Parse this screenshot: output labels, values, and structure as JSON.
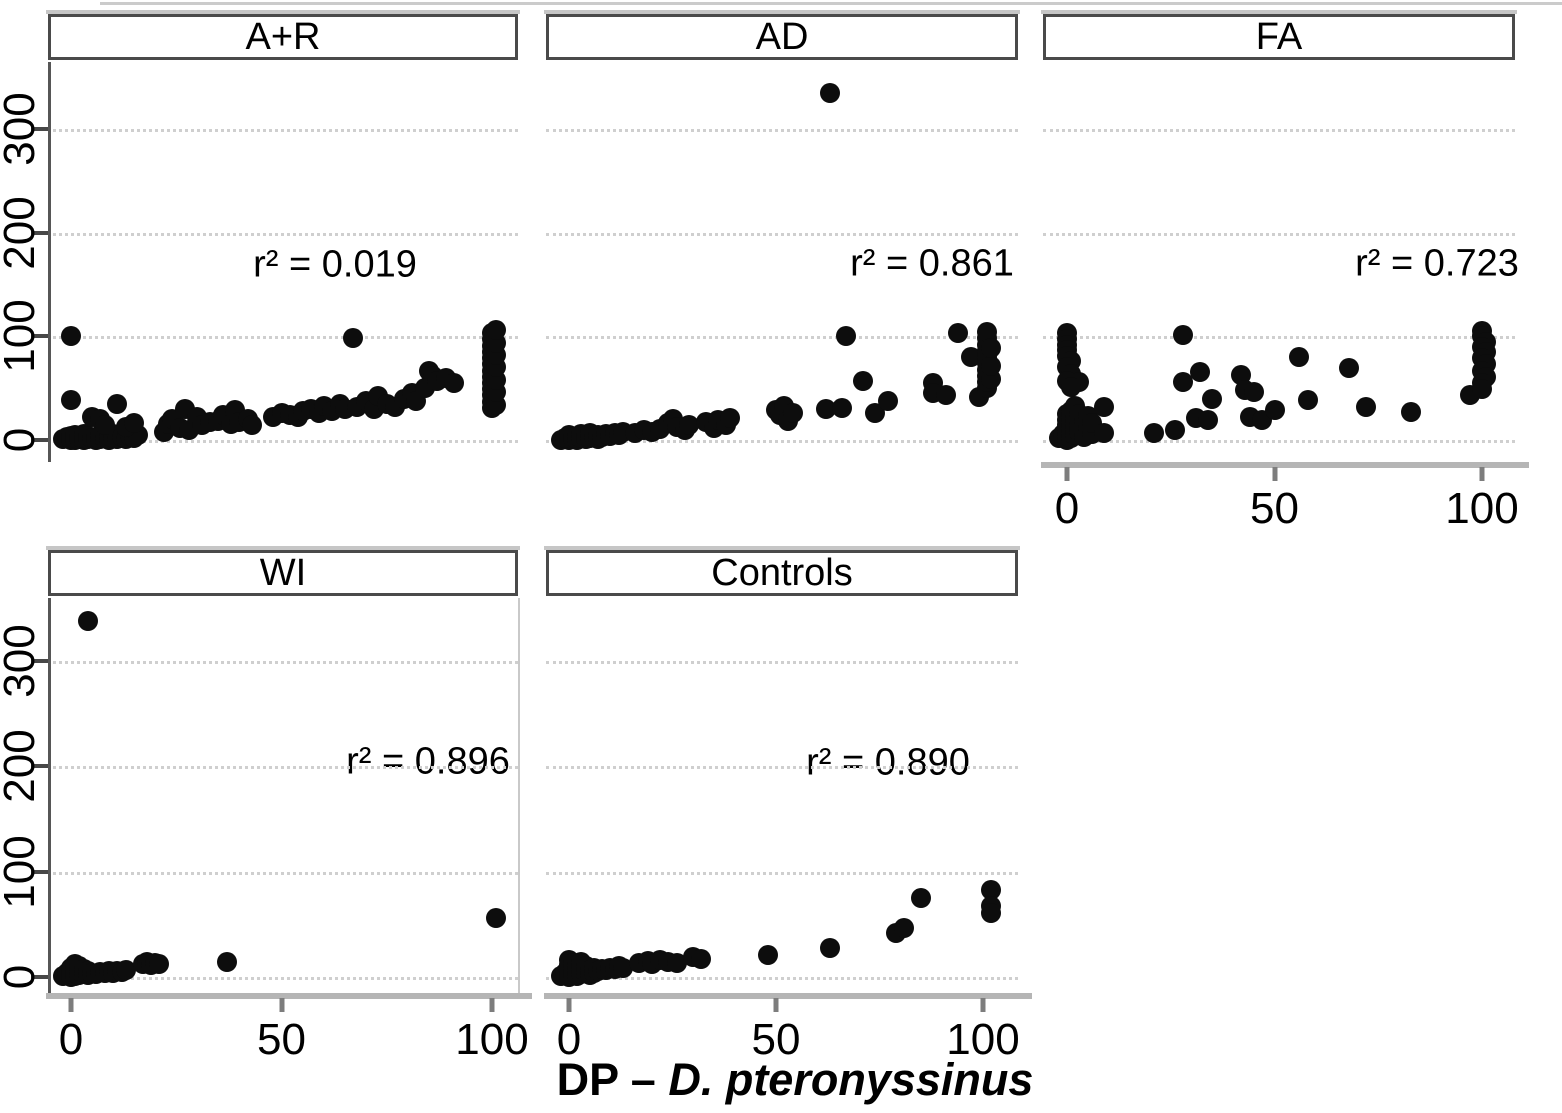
{
  "chart_data": {
    "type": "scatter",
    "layout": "lattice-facets-2-rows",
    "title": "",
    "xlabel_prefix": "DP – ",
    "xlabel_species": "D. pteronyssinus",
    "ylabel": "",
    "x_ticks": [
      0,
      50,
      100
    ],
    "y_ticks": [
      0,
      100,
      200,
      300
    ],
    "x_domain": [
      -5,
      107
    ],
    "y_domain": [
      -20,
      365
    ],
    "grid": "dotted-horizontal-only",
    "point_color": "#0d0d0d",
    "grid_color": "#cfcfcf",
    "axis_line_color": "#b5b5b5",
    "strip_border_color": "#4a4a4a",
    "panels": [
      {
        "id": "a-plus-r",
        "title": "A+R",
        "r2_label": "r² = 0.019",
        "r2_value": 0.019,
        "points": [
          [
            0,
            100
          ],
          [
            0,
            39
          ],
          [
            -2,
            1
          ],
          [
            -1,
            3
          ],
          [
            0,
            0
          ],
          [
            0,
            2
          ],
          [
            0,
            4
          ],
          [
            1,
            0
          ],
          [
            1,
            2
          ],
          [
            1,
            5
          ],
          [
            2,
            1
          ],
          [
            2,
            3
          ],
          [
            3,
            0
          ],
          [
            3,
            2
          ],
          [
            3,
            6
          ],
          [
            4,
            1
          ],
          [
            4,
            4
          ],
          [
            5,
            2
          ],
          [
            6,
            0
          ],
          [
            6,
            3
          ],
          [
            7,
            1
          ],
          [
            7,
            5
          ],
          [
            8,
            2
          ],
          [
            9,
            0
          ],
          [
            9,
            4
          ],
          [
            10,
            2
          ],
          [
            10,
            6
          ],
          [
            11,
            1
          ],
          [
            12,
            3
          ],
          [
            13,
            1
          ],
          [
            14,
            4
          ],
          [
            15,
            2
          ],
          [
            16,
            5
          ],
          [
            5,
            22
          ],
          [
            7,
            20
          ],
          [
            8,
            14
          ],
          [
            11,
            35
          ],
          [
            13,
            13
          ],
          [
            15,
            16
          ],
          [
            22,
            8
          ],
          [
            23,
            15
          ],
          [
            24,
            20
          ],
          [
            26,
            12
          ],
          [
            27,
            30
          ],
          [
            28,
            10
          ],
          [
            30,
            22
          ],
          [
            31,
            14
          ],
          [
            33,
            17
          ],
          [
            35,
            18
          ],
          [
            36,
            24
          ],
          [
            38,
            15
          ],
          [
            39,
            29
          ],
          [
            40,
            17
          ],
          [
            42,
            20
          ],
          [
            43,
            14
          ],
          [
            48,
            22
          ],
          [
            50,
            26
          ],
          [
            52,
            24
          ],
          [
            54,
            22
          ],
          [
            55,
            28
          ],
          [
            57,
            30
          ],
          [
            59,
            26
          ],
          [
            60,
            33
          ],
          [
            62,
            28
          ],
          [
            64,
            35
          ],
          [
            65,
            30
          ],
          [
            67,
            98
          ],
          [
            68,
            32
          ],
          [
            70,
            38
          ],
          [
            72,
            30
          ],
          [
            73,
            42
          ],
          [
            75,
            35
          ],
          [
            77,
            32
          ],
          [
            79,
            40
          ],
          [
            81,
            45
          ],
          [
            82,
            38
          ],
          [
            84,
            50
          ],
          [
            85,
            67
          ],
          [
            86,
            62
          ],
          [
            87,
            57
          ],
          [
            89,
            60
          ],
          [
            91,
            55
          ],
          [
            100,
            31
          ],
          [
            100,
            37
          ],
          [
            100,
            43
          ],
          [
            100,
            49
          ],
          [
            100,
            55
          ],
          [
            100,
            61
          ],
          [
            100,
            67
          ],
          [
            100,
            73
          ],
          [
            100,
            79
          ],
          [
            100,
            85
          ],
          [
            100,
            91
          ],
          [
            100,
            97
          ],
          [
            100,
            103
          ],
          [
            101,
            34
          ],
          [
            101,
            46
          ],
          [
            101,
            58
          ],
          [
            101,
            70
          ],
          [
            101,
            82
          ],
          [
            101,
            94
          ],
          [
            101,
            106
          ]
        ]
      },
      {
        "id": "ad",
        "title": "AD",
        "r2_label": "r² = 0.861",
        "r2_value": 0.861,
        "points": [
          [
            -2,
            0
          ],
          [
            -1,
            2
          ],
          [
            0,
            0
          ],
          [
            0,
            2
          ],
          [
            0,
            5
          ],
          [
            1,
            1
          ],
          [
            1,
            3
          ],
          [
            2,
            0
          ],
          [
            2,
            4
          ],
          [
            3,
            2
          ],
          [
            3,
            6
          ],
          [
            4,
            1
          ],
          [
            4,
            4
          ],
          [
            5,
            2
          ],
          [
            5,
            7
          ],
          [
            6,
            3
          ],
          [
            7,
            1
          ],
          [
            7,
            5
          ],
          [
            8,
            3
          ],
          [
            9,
            6
          ],
          [
            10,
            4
          ],
          [
            11,
            7
          ],
          [
            12,
            5
          ],
          [
            13,
            8
          ],
          [
            16,
            7
          ],
          [
            18,
            10
          ],
          [
            20,
            8
          ],
          [
            22,
            11
          ],
          [
            24,
            16
          ],
          [
            25,
            20
          ],
          [
            26,
            13
          ],
          [
            28,
            10
          ],
          [
            29,
            14
          ],
          [
            33,
            17
          ],
          [
            35,
            12
          ],
          [
            36,
            19
          ],
          [
            38,
            14
          ],
          [
            39,
            21
          ],
          [
            50,
            29
          ],
          [
            51,
            24
          ],
          [
            52,
            33
          ],
          [
            53,
            18
          ],
          [
            54,
            26
          ],
          [
            62,
            30
          ],
          [
            63,
            335
          ],
          [
            66,
            31
          ],
          [
            67,
            100
          ],
          [
            71,
            57
          ],
          [
            74,
            26
          ],
          [
            77,
            38
          ],
          [
            88,
            55
          ],
          [
            88,
            45
          ],
          [
            91,
            43
          ],
          [
            94,
            103
          ],
          [
            97,
            80
          ],
          [
            99,
            41
          ],
          [
            101,
            50
          ],
          [
            101,
            56
          ],
          [
            101,
            62
          ],
          [
            101,
            68
          ],
          [
            101,
            74
          ],
          [
            101,
            80
          ],
          [
            101,
            86
          ],
          [
            101,
            92
          ],
          [
            101,
            98
          ],
          [
            101,
            104
          ],
          [
            102,
            59
          ],
          [
            102,
            71
          ],
          [
            102,
            89
          ]
        ]
      },
      {
        "id": "fa",
        "title": "FA",
        "r2_label": "r² = 0.723",
        "r2_value": 0.723,
        "points": [
          [
            0,
            103
          ],
          [
            0,
            97
          ],
          [
            0,
            92
          ],
          [
            0,
            87
          ],
          [
            0,
            81
          ],
          [
            1,
            76
          ],
          [
            0,
            70
          ],
          [
            1,
            64
          ],
          [
            0,
            57
          ],
          [
            3,
            56
          ],
          [
            1,
            51
          ],
          [
            -2,
            2
          ],
          [
            -1,
            6
          ],
          [
            0,
            0
          ],
          [
            0,
            4
          ],
          [
            0,
            9
          ],
          [
            0,
            14
          ],
          [
            0,
            19
          ],
          [
            0,
            25
          ],
          [
            1,
            2
          ],
          [
            1,
            7
          ],
          [
            1,
            12
          ],
          [
            1,
            17
          ],
          [
            1,
            22
          ],
          [
            1,
            28
          ],
          [
            2,
            5
          ],
          [
            2,
            11
          ],
          [
            2,
            16
          ],
          [
            2,
            21
          ],
          [
            2,
            33
          ],
          [
            3,
            8
          ],
          [
            3,
            14
          ],
          [
            3,
            25
          ],
          [
            4,
            3
          ],
          [
            4,
            18
          ],
          [
            5,
            23
          ],
          [
            5,
            12
          ],
          [
            6,
            6
          ],
          [
            6,
            16
          ],
          [
            9,
            32
          ],
          [
            9,
            7
          ],
          [
            21,
            7
          ],
          [
            26,
            10
          ],
          [
            28,
            101
          ],
          [
            28,
            56
          ],
          [
            32,
            66
          ],
          [
            31,
            21
          ],
          [
            34,
            19
          ],
          [
            35,
            40
          ],
          [
            42,
            63
          ],
          [
            43,
            48
          ],
          [
            45,
            46
          ],
          [
            44,
            22
          ],
          [
            47,
            19
          ],
          [
            50,
            29
          ],
          [
            56,
            80
          ],
          [
            58,
            39
          ],
          [
            68,
            69
          ],
          [
            72,
            32
          ],
          [
            83,
            27
          ],
          [
            97,
            43
          ],
          [
            100,
            105
          ],
          [
            100,
            100
          ],
          [
            101,
            95
          ],
          [
            100,
            90
          ],
          [
            101,
            85
          ],
          [
            100,
            79
          ],
          [
            101,
            73
          ],
          [
            100,
            67
          ],
          [
            101,
            61
          ],
          [
            100,
            55
          ],
          [
            100,
            49
          ]
        ]
      },
      {
        "id": "wi",
        "title": "WI",
        "r2_label": "r² = 0.896",
        "r2_value": 0.896,
        "points": [
          [
            4,
            338
          ],
          [
            -2,
            1
          ],
          [
            -1,
            4
          ],
          [
            0,
            0
          ],
          [
            0,
            3
          ],
          [
            0,
            6
          ],
          [
            0,
            9
          ],
          [
            1,
            1
          ],
          [
            1,
            4
          ],
          [
            1,
            8
          ],
          [
            1,
            12
          ],
          [
            2,
            2
          ],
          [
            2,
            6
          ],
          [
            2,
            10
          ],
          [
            3,
            4
          ],
          [
            3,
            8
          ],
          [
            4,
            2
          ],
          [
            4,
            6
          ],
          [
            5,
            4
          ],
          [
            6,
            3
          ],
          [
            7,
            5
          ],
          [
            8,
            4
          ],
          [
            9,
            6
          ],
          [
            10,
            4
          ],
          [
            11,
            6
          ],
          [
            12,
            5
          ],
          [
            13,
            7
          ],
          [
            17,
            12
          ],
          [
            18,
            14
          ],
          [
            19,
            11
          ],
          [
            20,
            13
          ],
          [
            21,
            12
          ],
          [
            37,
            14
          ],
          [
            101,
            56
          ]
        ]
      },
      {
        "id": "controls",
        "title": "Controls",
        "r2_label": "r² = 0.890",
        "r2_value": 0.89,
        "points": [
          [
            -2,
            1
          ],
          [
            -1,
            4
          ],
          [
            0,
            0
          ],
          [
            0,
            3
          ],
          [
            0,
            7
          ],
          [
            0,
            11
          ],
          [
            0,
            16
          ],
          [
            1,
            2
          ],
          [
            1,
            5
          ],
          [
            1,
            9
          ],
          [
            1,
            13
          ],
          [
            2,
            1
          ],
          [
            2,
            7
          ],
          [
            2,
            11
          ],
          [
            3,
            3
          ],
          [
            3,
            8
          ],
          [
            3,
            14
          ],
          [
            4,
            5
          ],
          [
            4,
            10
          ],
          [
            5,
            2
          ],
          [
            5,
            7
          ],
          [
            6,
            4
          ],
          [
            6,
            9
          ],
          [
            7,
            6
          ],
          [
            8,
            8
          ],
          [
            9,
            7
          ],
          [
            10,
            9
          ],
          [
            11,
            8
          ],
          [
            12,
            10
          ],
          [
            13,
            9
          ],
          [
            17,
            13
          ],
          [
            19,
            15
          ],
          [
            20,
            12
          ],
          [
            22,
            16
          ],
          [
            24,
            14
          ],
          [
            26,
            13
          ],
          [
            30,
            19
          ],
          [
            32,
            17
          ],
          [
            48,
            21
          ],
          [
            63,
            28
          ],
          [
            79,
            42
          ],
          [
            81,
            47
          ],
          [
            85,
            75
          ],
          [
            102,
            83
          ],
          [
            102,
            67
          ],
          [
            102,
            61
          ]
        ]
      }
    ]
  }
}
